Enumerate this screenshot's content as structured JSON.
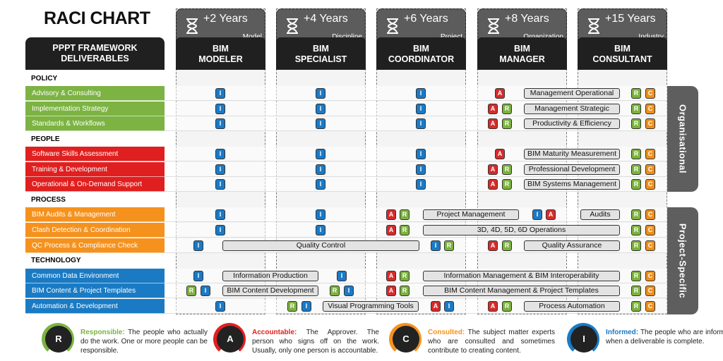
{
  "title": "RACI CHART",
  "framework_header": "PPPT FRAMEWORK\nDELIVERABLES",
  "roles": [
    {
      "years": "+2 Years",
      "level": "Model",
      "name": "BIM\nMODELER"
    },
    {
      "years": "+4 Years",
      "level": "Discipline",
      "name": "BIM\nSPECIALIST"
    },
    {
      "years": "+6 Years",
      "level": "Project",
      "name": "BIM\nCOORDINATOR"
    },
    {
      "years": "+8 Years",
      "level": "Organization",
      "name": "BIM\nMANAGER"
    },
    {
      "years": "+15 Years",
      "level": "Industry",
      "name": "BIM\nCONSULTANT"
    }
  ],
  "categories": [
    {
      "name": "POLICY",
      "color": "#7cb342",
      "items": [
        "Advisory & Consulting",
        "Implementation Strategy",
        "Standards & Workflows"
      ]
    },
    {
      "name": "PEOPLE",
      "color": "#e02020",
      "items": [
        "Software Skills Assessment",
        "Training & Development",
        "Operational & On-Demand Support"
      ]
    },
    {
      "name": "PROCESS",
      "color": "#f5921e",
      "items": [
        "BIM Audits & Management",
        "Clash Detection & Coordination",
        "QC Process & Compliance Check"
      ]
    },
    {
      "name": "TECHNOLOGY",
      "color": "#1a7bc4",
      "items": [
        "Common Data Environment",
        "BIM Content & Project Templates",
        "Automation & Development"
      ]
    }
  ],
  "rows": [
    {
      "badges": [
        [
          0,
          "I"
        ],
        [
          1,
          "I"
        ],
        [
          2,
          "I"
        ],
        [
          3,
          "A"
        ],
        [
          4,
          "R"
        ],
        [
          4,
          "C"
        ]
      ],
      "pills": [
        [
          3,
          "Management Operational"
        ]
      ]
    },
    {
      "badges": [
        [
          0,
          "I"
        ],
        [
          1,
          "I"
        ],
        [
          2,
          "I"
        ],
        [
          3,
          "A"
        ],
        [
          3,
          "R"
        ],
        [
          4,
          "R"
        ],
        [
          4,
          "C"
        ]
      ],
      "pills": [
        [
          3,
          "Management Strategic"
        ]
      ]
    },
    {
      "badges": [
        [
          0,
          "I"
        ],
        [
          1,
          "I"
        ],
        [
          2,
          "I"
        ],
        [
          3,
          "A"
        ],
        [
          3,
          "R"
        ],
        [
          4,
          "R"
        ],
        [
          4,
          "C"
        ]
      ],
      "pills": [
        [
          3,
          "Productivity & Efficiency"
        ]
      ]
    },
    {
      "badges": [
        [
          0,
          "I"
        ],
        [
          1,
          "I"
        ],
        [
          2,
          "I"
        ],
        [
          3,
          "A"
        ],
        [
          4,
          "R"
        ],
        [
          4,
          "C"
        ]
      ],
      "pills": [
        [
          3,
          "BIM Maturity Measurement"
        ]
      ]
    },
    {
      "badges": [
        [
          0,
          "I"
        ],
        [
          1,
          "I"
        ],
        [
          2,
          "I"
        ],
        [
          3,
          "A"
        ],
        [
          3,
          "R"
        ],
        [
          4,
          "R"
        ],
        [
          4,
          "C"
        ]
      ],
      "pills": [
        [
          3,
          "Professional Development"
        ]
      ]
    },
    {
      "badges": [
        [
          0,
          "I"
        ],
        [
          1,
          "I"
        ],
        [
          2,
          "I"
        ],
        [
          3,
          "A"
        ],
        [
          3,
          "R"
        ],
        [
          4,
          "R"
        ],
        [
          4,
          "C"
        ]
      ],
      "pills": [
        [
          3,
          "BIM Systems Management"
        ]
      ]
    },
    {
      "badges": [
        [
          0,
          "I"
        ],
        [
          1,
          "I"
        ],
        [
          2,
          "A"
        ],
        [
          2,
          "R"
        ],
        [
          3,
          "I"
        ],
        [
          3,
          "A"
        ],
        [
          4,
          "R"
        ],
        [
          4,
          "C"
        ]
      ],
      "pills": [
        [
          2,
          "Project Management"
        ],
        [
          3,
          "Audits"
        ]
      ]
    },
    {
      "badges": [
        [
          0,
          "I"
        ],
        [
          1,
          "I"
        ],
        [
          2,
          "A"
        ],
        [
          2,
          "R"
        ],
        [
          4,
          "R"
        ],
        [
          4,
          "C"
        ]
      ],
      "pills": [
        [
          2,
          "3D, 4D, 5D, 6D Operations"
        ]
      ]
    },
    {
      "badges": [
        [
          0,
          "I"
        ],
        [
          2,
          "I"
        ],
        [
          2,
          "R"
        ],
        [
          3,
          "A"
        ],
        [
          3,
          "R"
        ],
        [
          4,
          "R"
        ],
        [
          4,
          "C"
        ]
      ],
      "pills": [
        [
          0,
          "Quality Control"
        ],
        [
          3,
          "Quality Assurance"
        ]
      ]
    },
    {
      "badges": [
        [
          0,
          "I"
        ],
        [
          1,
          "I"
        ],
        [
          2,
          "A"
        ],
        [
          2,
          "R"
        ],
        [
          4,
          "R"
        ],
        [
          4,
          "C"
        ]
      ],
      "pills": [
        [
          0,
          "Information Production"
        ],
        [
          2,
          "Information Management & BIM Interoperability"
        ]
      ]
    },
    {
      "badges": [
        [
          0,
          "R"
        ],
        [
          0,
          "I"
        ],
        [
          1,
          "R"
        ],
        [
          1,
          "I"
        ],
        [
          2,
          "A"
        ],
        [
          2,
          "R"
        ],
        [
          4,
          "R"
        ],
        [
          4,
          "C"
        ]
      ],
      "pills": [
        [
          0,
          "BIM Content Development"
        ],
        [
          2,
          "BIM Content Management & Project Templates"
        ]
      ]
    },
    {
      "badges": [
        [
          0,
          "I"
        ],
        [
          1,
          "R"
        ],
        [
          1,
          "I"
        ],
        [
          2,
          "A"
        ],
        [
          2,
          "I"
        ],
        [
          3,
          "A"
        ],
        [
          3,
          "R"
        ],
        [
          4,
          "R"
        ],
        [
          4,
          "C"
        ]
      ],
      "pills": [
        [
          1,
          "Visual Programming Tools"
        ],
        [
          3,
          "Process Automation"
        ]
      ]
    }
  ],
  "side_labels": [
    "Organisational",
    "Project-Specific"
  ],
  "legend": [
    {
      "letter": "R",
      "keyword": "Responsible:",
      "text": "The people who actually do the work. One or more people can be responsible.",
      "color": "#7cb342"
    },
    {
      "letter": "A",
      "keyword": "Accountable:",
      "text": "The Approver. The person who signs off on the work. Usually, only one person is accountable.",
      "color": "#e02020"
    },
    {
      "letter": "C",
      "keyword": "Consulted:",
      "text": "The subject matter experts who are consulted and sometimes contribute to creating content.",
      "color": "#f5921e"
    },
    {
      "letter": "I",
      "keyword": "Informed:",
      "text": "The people who are informed when a deliverable is complete.",
      "color": "#1a7bc4"
    }
  ]
}
